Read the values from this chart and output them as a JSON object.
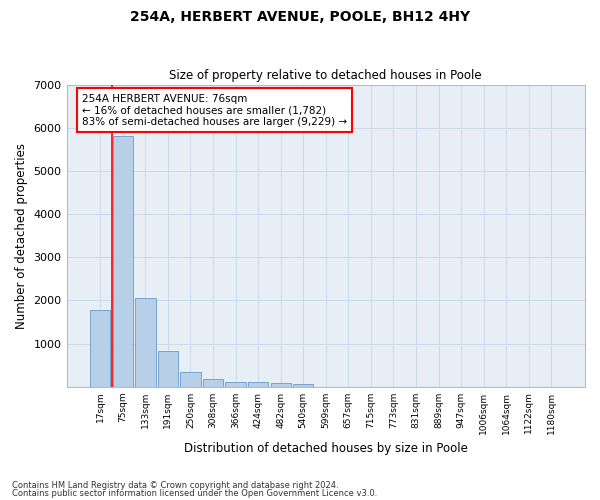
{
  "title1": "254A, HERBERT AVENUE, POOLE, BH12 4HY",
  "title2": "Size of property relative to detached houses in Poole",
  "xlabel": "Distribution of detached houses by size in Poole",
  "ylabel": "Number of detached properties",
  "categories": [
    "17sqm",
    "75sqm",
    "133sqm",
    "191sqm",
    "250sqm",
    "308sqm",
    "366sqm",
    "424sqm",
    "482sqm",
    "540sqm",
    "599sqm",
    "657sqm",
    "715sqm",
    "773sqm",
    "831sqm",
    "889sqm",
    "947sqm",
    "1006sqm",
    "1064sqm",
    "1122sqm",
    "1180sqm"
  ],
  "bar_values": [
    1782,
    5800,
    2060,
    820,
    340,
    185,
    115,
    100,
    95,
    70,
    0,
    0,
    0,
    0,
    0,
    0,
    0,
    0,
    0,
    0,
    0
  ],
  "bar_color": "#b8cfe8",
  "bar_edge_color": "#6699cc",
  "grid_color": "#ccd9e8",
  "bg_color": "#e8eef5",
  "red_line_x": 0.5,
  "annotation_line1": "254A HERBERT AVENUE: 76sqm",
  "annotation_line2": "← 16% of detached houses are smaller (1,782)",
  "annotation_line3": "83% of semi-detached houses are larger (9,229) →",
  "ylim": [
    0,
    7000
  ],
  "yticks": [
    0,
    1000,
    2000,
    3000,
    4000,
    5000,
    6000,
    7000
  ],
  "footnote1": "Contains HM Land Registry data © Crown copyright and database right 2024.",
  "footnote2": "Contains public sector information licensed under the Open Government Licence v3.0."
}
